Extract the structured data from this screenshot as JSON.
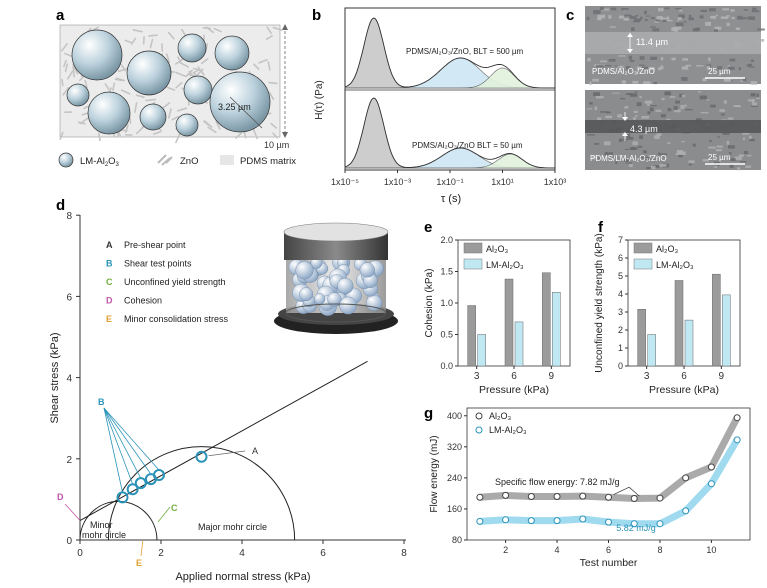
{
  "panels": {
    "a": "a",
    "b": "b",
    "c": "c",
    "d": "d",
    "e": "e",
    "f": "f",
    "g": "g"
  },
  "panel_a": {
    "scale_10": "10 µm",
    "scale_325": "3.25 µm",
    "legend": {
      "lm": "LM-Al",
      "lm_sub": "2",
      "lm_o": "O",
      "lm_sub2": "3",
      "zno": "ZnO",
      "pdms": "PDMS matrix"
    }
  },
  "panel_c": {
    "top_thickness": "11.4 µm",
    "top_label": "PDMS/Al₂O₃/ZnO",
    "top_scale": "25 µm",
    "bottom_thickness": "4.3 µm",
    "bottom_label": "PDMS/LM-Al₂O₃/ZnO",
    "bottom_scale": "25 µm"
  },
  "chart_data": [
    {
      "id": "b",
      "type": "area",
      "ylabel": "H(τ) (Pa)",
      "xlabel": "τ (s)",
      "x_scale": "log",
      "xlim": [
        1e-05,
        1000
      ],
      "xticks": [
        "1x10⁻⁵",
        "1x10⁻³",
        "1x10⁻¹",
        "1x10¹",
        "1x10³"
      ],
      "subplots": [
        {
          "annotation": "PDMS/Al₂O₃/ZnO, BLT = 500 µm",
          "peaks_log10_tau": [
            -3.9,
            -0.6,
            1.0
          ],
          "peak_colors": [
            "#c8c8c8",
            "#cfe6f4",
            "#e2f1dd"
          ]
        },
        {
          "annotation": "PDMS/Al₂O₃/ZnO  BLT = 50 µm",
          "peaks_log10_tau": [
            -3.9,
            -0.6,
            1.3
          ],
          "peak_colors": [
            "#c8c8c8",
            "#cfe6f4",
            "#e2f1dd"
          ]
        }
      ]
    },
    {
      "id": "d",
      "type": "scatter",
      "xlabel": "Applied normal stress (kPa)",
      "ylabel": "Shear stress (kPa)",
      "xlim": [
        0,
        8
      ],
      "ylim": [
        0,
        8
      ],
      "xticks": [
        0,
        2,
        4,
        6,
        8
      ],
      "yticks": [
        0,
        2,
        4,
        6,
        8
      ],
      "legend": [
        {
          "key": "A",
          "text": "Pre-shear point",
          "color": "#333333"
        },
        {
          "key": "B",
          "text": "Shear test points",
          "color": "#2a93b8"
        },
        {
          "key": "C",
          "text": "Unconfined yield strength",
          "color": "#6fae3b"
        },
        {
          "key": "D",
          "text": "Cohesion",
          "color": "#c255a8"
        },
        {
          "key": "E",
          "text": "Minor consolidation stress",
          "color": "#e0a030"
        }
      ],
      "pre_shear_point": {
        "x": 3.0,
        "y": 2.05
      },
      "shear_points": [
        {
          "x": 1.05,
          "y": 1.05
        },
        {
          "x": 1.3,
          "y": 1.25
        },
        {
          "x": 1.5,
          "y": 1.4
        },
        {
          "x": 1.75,
          "y": 1.5
        },
        {
          "x": 1.95,
          "y": 1.6
        }
      ],
      "yield_locus": {
        "x0": 0,
        "y0": 0.48,
        "x1": 7.1,
        "y1": 4.4
      },
      "minor_circle": {
        "center": 0.95,
        "radius": 0.95
      },
      "major_circle": {
        "center": 3.0,
        "radius": 2.3
      },
      "labels": {
        "a": "A",
        "b": "B",
        "c": "C",
        "d": "D",
        "e": "E",
        "minor": "Minor",
        "minor2": "mohr circle",
        "major": "Major mohr circle"
      }
    },
    {
      "id": "e",
      "type": "bar",
      "categories": [
        "3",
        "6",
        "9"
      ],
      "series": [
        {
          "name": "Al₂O₃",
          "values": [
            0.96,
            1.38,
            1.48
          ],
          "color": "#9b9b9b"
        },
        {
          "name": "LM-Al₂O₃",
          "values": [
            0.5,
            0.7,
            1.17
          ],
          "color": "#bfe8f3"
        }
      ],
      "xlabel": "Pressure (kPa)",
      "ylabel": "Cohesion (kPa)",
      "ylim": [
        0,
        2.0
      ],
      "yticks": [
        "0.0",
        "0.5",
        "1.0",
        "1.5",
        "2.0"
      ]
    },
    {
      "id": "f",
      "type": "bar",
      "categories": [
        "3",
        "6",
        "9"
      ],
      "series": [
        {
          "name": "Al₂O₃",
          "values": [
            3.15,
            4.75,
            5.1
          ],
          "color": "#9b9b9b"
        },
        {
          "name": "LM-Al₂O₃",
          "values": [
            1.75,
            2.55,
            3.95
          ],
          "color": "#bfe8f3"
        }
      ],
      "xlabel": "Pressure (kPa)",
      "ylabel": "Unconfined yield strength (kPa)",
      "ylim": [
        0,
        7
      ],
      "yticks": [
        "0",
        "1",
        "2",
        "3",
        "4",
        "5",
        "6",
        "7"
      ]
    },
    {
      "id": "g",
      "type": "line",
      "x": [
        1,
        2,
        3,
        4,
        5,
        6,
        7,
        8,
        9,
        10,
        11
      ],
      "series": [
        {
          "name": "Al₂O₃",
          "values": [
            190,
            195,
            192,
            192,
            193,
            190,
            187,
            188,
            240,
            268,
            395
          ],
          "color": "#9b9b9b"
        },
        {
          "name": "LM-Al₂O₃",
          "values": [
            128,
            132,
            130,
            130,
            134,
            126,
            122,
            122,
            155,
            225,
            338
          ],
          "color": "#8fd4ec"
        }
      ],
      "xlabel": "Test number",
      "ylabel": "Flow energy (mJ)",
      "xlim": [
        0.5,
        11.5
      ],
      "ylim": [
        80,
        420
      ],
      "xticks": [
        "2",
        "4",
        "6",
        "8",
        "10"
      ],
      "yticks": [
        "80",
        "160",
        "240",
        "320",
        "400"
      ],
      "annotation_title": "Specific flow energy: 7.82 mJ/g",
      "annotation_lm": "5.82 mJ/g"
    }
  ]
}
